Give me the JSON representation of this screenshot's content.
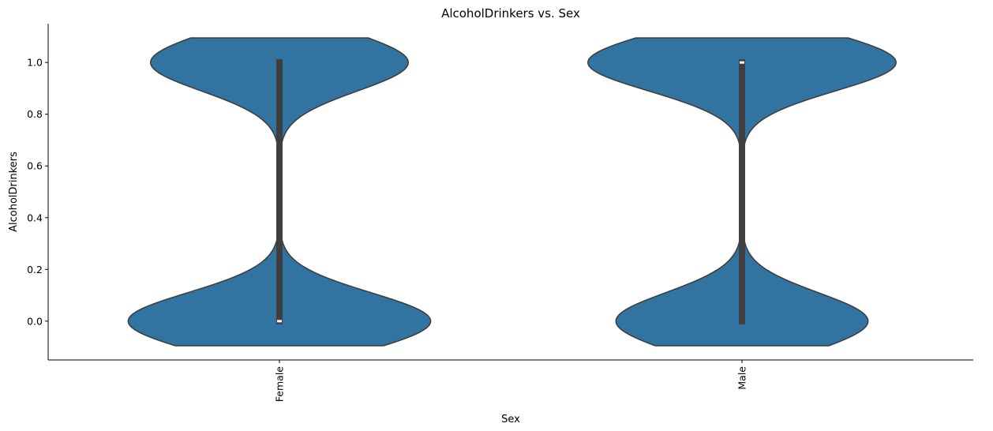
{
  "chart_data": {
    "type": "violin",
    "title": "AlcoholDrinkers vs. Sex",
    "xlabel": "Sex",
    "ylabel": "AlcoholDrinkers",
    "categories": [
      "Female",
      "Male"
    ],
    "ylim": [
      -0.15,
      1.15
    ],
    "yticks": [
      "0.0",
      "0.2",
      "0.4",
      "0.6",
      "0.8",
      "1.0"
    ],
    "grid": false,
    "legend": "none",
    "colors": {
      "violin_fill": "#3274a1",
      "violin_edge": "#3f3f3f",
      "box": "#3f3f3f",
      "median": "#ffffff"
    },
    "series": [
      {
        "category": "Female",
        "min": 0,
        "q1": 0,
        "median": 0,
        "q3": 1,
        "max": 1,
        "density_weights": {
          "0": 0.54,
          "1": 0.46
        }
      },
      {
        "category": "Male",
        "min": 0,
        "q1": 0,
        "median": 1,
        "q3": 1,
        "max": 1,
        "density_weights": {
          "0": 0.45,
          "1": 0.55
        }
      }
    ]
  }
}
